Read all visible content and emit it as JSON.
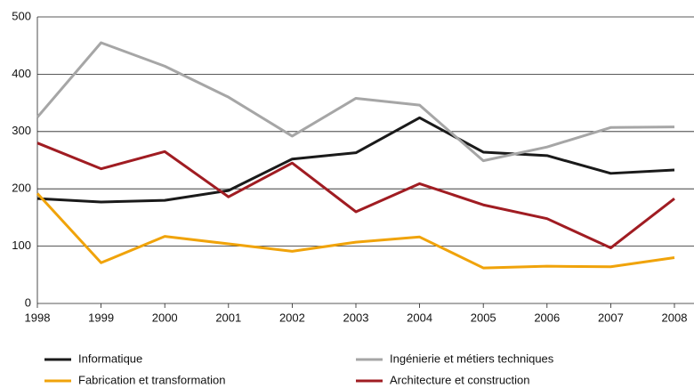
{
  "chart_data": {
    "type": "line",
    "categories": [
      "1998",
      "1999",
      "2000",
      "2001",
      "2002",
      "2003",
      "2004",
      "2005",
      "2006",
      "2007",
      "2008"
    ],
    "series": [
      {
        "name": "Informatique",
        "color": "#1a1a1a",
        "values": [
          183,
          177,
          180,
          197,
          252,
          263,
          324,
          264,
          258,
          227,
          233
        ]
      },
      {
        "name": "Ingénierie et métiers techniques",
        "color": "#a6a6a6",
        "values": [
          325,
          455,
          414,
          360,
          292,
          358,
          346,
          249,
          273,
          307,
          308
        ]
      },
      {
        "name": "Fabrication et transformation",
        "color": "#f0a30a",
        "values": [
          192,
          71,
          117,
          104,
          91,
          107,
          116,
          62,
          65,
          64,
          80
        ]
      },
      {
        "name": "Architecture et construction",
        "color": "#a01c22",
        "values": [
          280,
          235,
          265,
          186,
          245,
          160,
          209,
          172,
          148,
          97,
          183
        ]
      }
    ],
    "ylim": [
      0,
      500
    ],
    "yticks": [
      0,
      100,
      200,
      300,
      400,
      500
    ],
    "grid": true
  }
}
